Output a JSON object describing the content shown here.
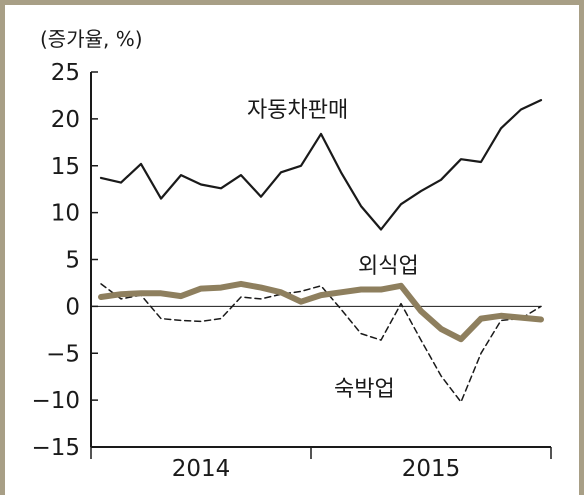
{
  "chart_data": {
    "type": "line",
    "unit_label": "(증가율, %)",
    "ylim": [
      -15,
      25
    ],
    "yticks": [
      25,
      20,
      15,
      10,
      5,
      0,
      -5,
      -10,
      -15
    ],
    "ytick_labels": [
      "25",
      "20",
      "15",
      "10",
      "5",
      "0",
      "−5",
      "−10",
      "−15"
    ],
    "year_labels": [
      "2014",
      "2015"
    ],
    "grid": false,
    "series": [
      {
        "name": "자동차판매",
        "color": "#1a1a1a",
        "style": "solid",
        "values": [
          13.7,
          13.2,
          15.2,
          11.5,
          14.0,
          13.0,
          12.6,
          14.0,
          11.7,
          14.3,
          15.0,
          18.4,
          14.3,
          10.7,
          8.2,
          10.9,
          12.3,
          13.5,
          15.7,
          15.4,
          19.0,
          21.0,
          22.0
        ]
      },
      {
        "name": "외식업",
        "color": "#8e7f5e",
        "style": "thick",
        "values": [
          1.0,
          1.3,
          1.4,
          1.4,
          1.1,
          1.9,
          2.0,
          2.4,
          2.0,
          1.5,
          0.5,
          1.2,
          1.5,
          1.8,
          1.8,
          2.2,
          -0.5,
          -2.4,
          -3.5,
          -1.3,
          -1.0,
          -1.2,
          -1.4
        ]
      },
      {
        "name": "숙박업",
        "color": "#1a1a1a",
        "style": "dashed",
        "values": [
          2.4,
          0.8,
          1.2,
          -1.3,
          -1.5,
          -1.6,
          -1.3,
          1.0,
          0.8,
          1.3,
          1.6,
          2.2,
          -0.3,
          -2.9,
          -3.6,
          0.3,
          -3.6,
          -7.4,
          -10.2,
          -5.0,
          -1.5,
          -1.3,
          0.0
        ]
      }
    ]
  }
}
